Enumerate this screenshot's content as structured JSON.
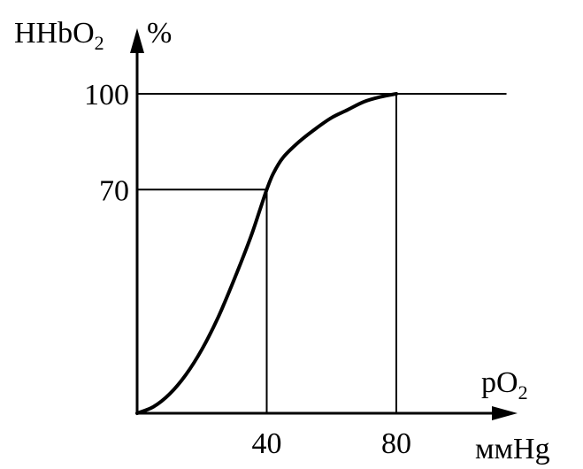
{
  "chart_data": {
    "type": "line",
    "ylabel": {
      "main": "HHbO",
      "sub": "2",
      "unit": "%"
    },
    "xlabel": {
      "main": "pO",
      "sub": "2",
      "unit": "ммHg"
    },
    "xlim": [
      0,
      115
    ],
    "ylim": [
      0,
      100
    ],
    "x_ticks": [
      {
        "value": 40,
        "label": "40"
      },
      {
        "value": 80,
        "label": "80"
      }
    ],
    "y_ticks": [
      {
        "value": 70,
        "label": "70"
      },
      {
        "value": 100,
        "label": "100"
      }
    ],
    "reference_lines": [
      {
        "type": "vertical",
        "x": 40,
        "y_to": 70
      },
      {
        "type": "vertical",
        "x": 80,
        "y_to": 100
      },
      {
        "type": "horizontal",
        "y": 70,
        "x_to": 40
      },
      {
        "type": "horizontal",
        "y": 100,
        "x_to": 114
      }
    ],
    "series": [
      {
        "points": [
          [
            0,
            0
          ],
          [
            5,
            2
          ],
          [
            10,
            6
          ],
          [
            15,
            12
          ],
          [
            20,
            20
          ],
          [
            25,
            30
          ],
          [
            30,
            42
          ],
          [
            35,
            55
          ],
          [
            38,
            64
          ],
          [
            40,
            70
          ],
          [
            42,
            75
          ],
          [
            45,
            80
          ],
          [
            50,
            85
          ],
          [
            55,
            89
          ],
          [
            60,
            92.5
          ],
          [
            65,
            95
          ],
          [
            70,
            97.5
          ],
          [
            75,
            99
          ],
          [
            80,
            100
          ]
        ]
      }
    ],
    "grid": false,
    "legend": "none",
    "colors": {
      "line": "#000000",
      "background": "#ffffff"
    }
  }
}
